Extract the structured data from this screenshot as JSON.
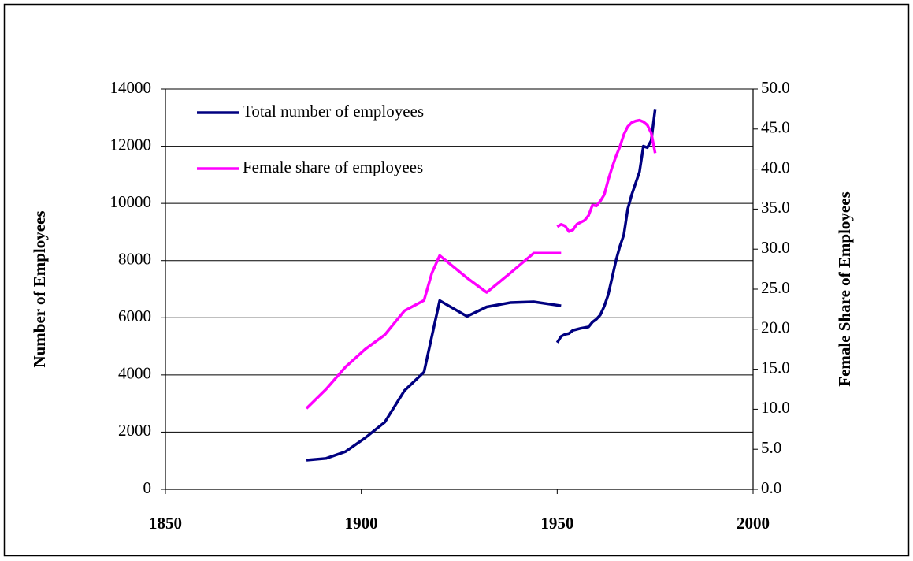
{
  "chart_data": {
    "type": "line",
    "ylabel": "Number of Employees",
    "y2label": "Female Share of Employees",
    "xlim": [
      1850,
      2000
    ],
    "xticks": [
      1850,
      1900,
      1950,
      2000
    ],
    "ylim": [
      0,
      14000
    ],
    "yticks": [
      0,
      2000,
      4000,
      6000,
      8000,
      10000,
      12000,
      14000
    ],
    "y2lim": [
      0,
      50
    ],
    "y2ticks": [
      {
        "value": 0,
        "label": "0.0"
      },
      {
        "value": 5,
        "label": "5.0"
      },
      {
        "value": 10,
        "label": "10.0"
      },
      {
        "value": 15,
        "label": "15.0"
      },
      {
        "value": 20,
        "label": "20.0"
      },
      {
        "value": 25,
        "label": "25.0"
      },
      {
        "value": 30,
        "label": "30.0"
      },
      {
        "value": 35,
        "label": "35.0"
      },
      {
        "value": 40,
        "label": "40.0"
      },
      {
        "value": 45,
        "label": "45.0"
      },
      {
        "value": 50,
        "label": "50.0"
      }
    ],
    "grid": true,
    "legend": "upper left",
    "series": [
      {
        "name": "Total number of employees",
        "color": "#000080",
        "axis": "y",
        "x": [
          1886,
          1891,
          1896,
          1901,
          1906,
          1911,
          1916,
          1920,
          1927,
          1932,
          1938,
          1944,
          1951,
          null,
          1950,
          1951,
          1952,
          1953,
          1954,
          1956,
          1958,
          1959,
          1960,
          1961,
          1962,
          1963,
          1964,
          1965,
          1966,
          1967,
          1968,
          1969,
          1970,
          1971,
          1972,
          1973,
          1974,
          1975
        ],
        "values": [
          1020,
          1080,
          1320,
          1800,
          2350,
          3450,
          4100,
          6600,
          6050,
          6380,
          6530,
          6560,
          6420,
          null,
          5130,
          5350,
          5420,
          5450,
          5560,
          5630,
          5680,
          5850,
          5950,
          6100,
          6400,
          6800,
          7400,
          8000,
          8500,
          8900,
          9800,
          10300,
          10700,
          11100,
          12000,
          11950,
          12200,
          13300
        ]
      },
      {
        "name": "Female share of employees",
        "color": "#ff00ff",
        "axis": "y2",
        "x": [
          1886,
          1891,
          1896,
          1901,
          1906,
          1911,
          1916,
          1918,
          1920,
          1927,
          1932,
          1938,
          1944,
          1951,
          null,
          1950,
          1951,
          1952,
          1953,
          1954,
          1955,
          1957,
          1958,
          1959,
          1960,
          1961,
          1962,
          1963,
          1964,
          1965,
          1966,
          1967,
          1968,
          1969,
          1970,
          1971,
          1972,
          1973,
          1974,
          1975
        ],
        "values": [
          10.1,
          12.5,
          15.3,
          17.5,
          19.3,
          22.3,
          23.6,
          27.0,
          29.2,
          26.4,
          24.6,
          27.0,
          29.5,
          29.5,
          null,
          32.8,
          33.1,
          32.9,
          32.2,
          32.4,
          33.1,
          33.6,
          34.2,
          35.5,
          35.4,
          36.0,
          36.8,
          38.6,
          40.2,
          41.6,
          42.8,
          44.3,
          45.3,
          45.8,
          46.0,
          46.1,
          45.9,
          45.5,
          44.5,
          42.0
        ]
      }
    ]
  }
}
